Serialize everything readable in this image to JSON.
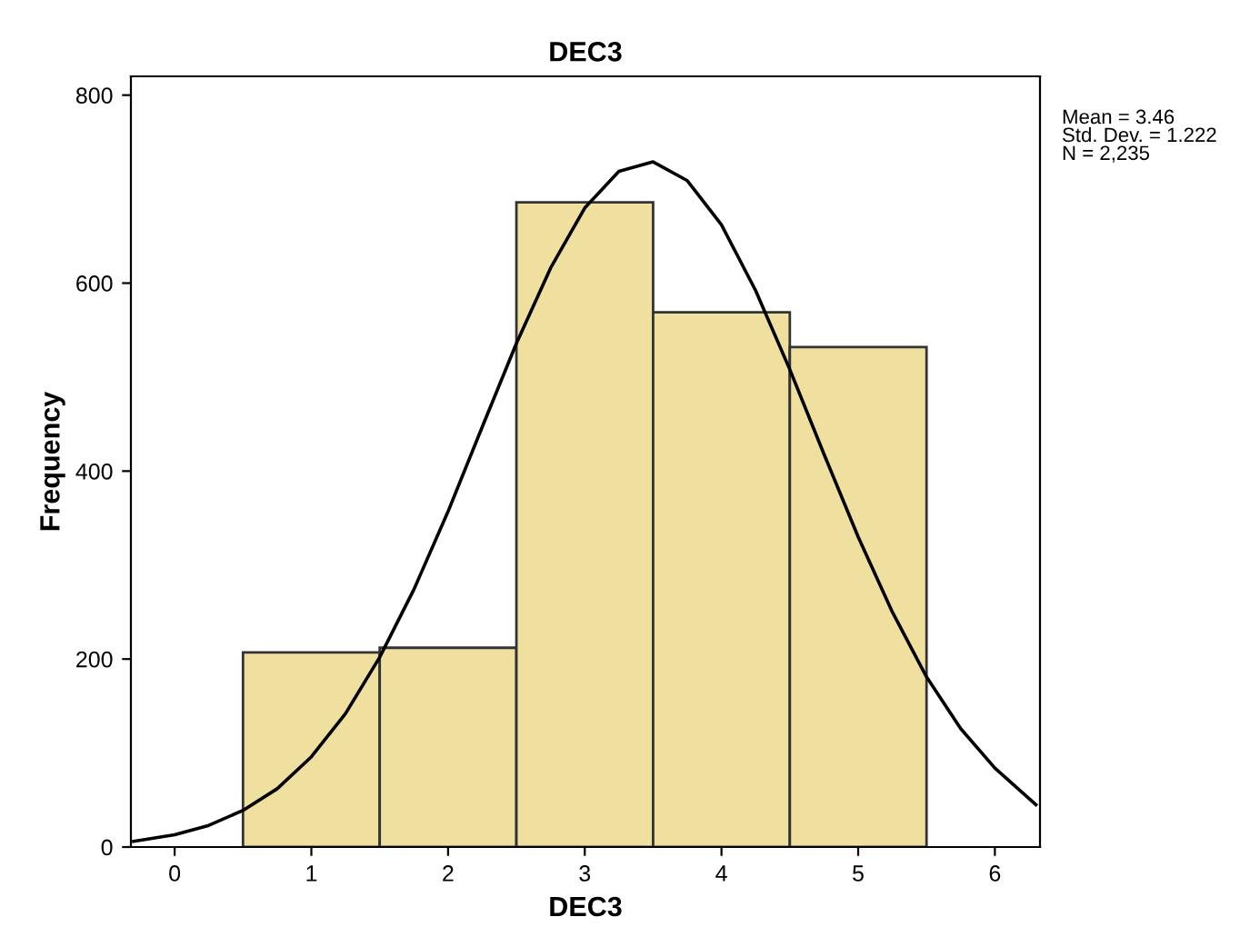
{
  "chart_data": {
    "type": "histogram",
    "title": "DEC3",
    "xlabel": "DEC3",
    "ylabel": "Frequency",
    "bins": [
      0.5,
      1.5,
      2.5,
      3.5,
      4.5,
      5.5
    ],
    "values": [
      207,
      212,
      686,
      569,
      532
    ],
    "color": "#f0e0a0",
    "series": [
      {
        "type": "line",
        "color": "#000000",
        "x": [
          -0.3,
          0,
          0.25,
          0.5,
          0.75,
          1,
          1.25,
          1.5,
          1.75,
          2,
          2.25,
          2.5,
          2.75,
          3,
          3.25,
          3.5,
          3.75,
          4,
          4.25,
          4.5,
          4.75,
          5,
          5.25,
          5.5,
          5.75,
          6,
          6.3
        ],
        "values": [
          6,
          13,
          23,
          39,
          62,
          96,
          142,
          202,
          274,
          357,
          447,
          536,
          616,
          680,
          719,
          729,
          709,
          662,
          592,
          508,
          418,
          330,
          250,
          181,
          126,
          84,
          45
        ]
      }
    ],
    "xlim": [
      -0.32,
      6.33
    ],
    "ylim": [
      0,
      820
    ],
    "xticks": [
      0,
      1,
      2,
      3,
      4,
      5,
      6
    ],
    "yticks": [
      0,
      200,
      400,
      600,
      800
    ],
    "grid": false,
    "marker": "none",
    "line_style": "solid",
    "annotations": [
      "Mean = 3.46\nStd. Dev. = 1.222\nN = 2,235"
    ]
  }
}
